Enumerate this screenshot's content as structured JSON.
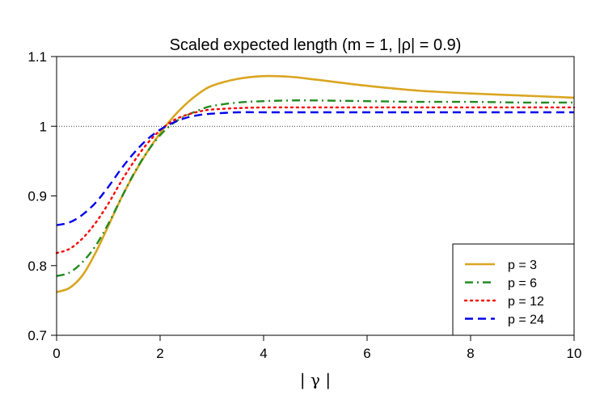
{
  "chart_data": {
    "type": "line",
    "title": "Scaled expected length (m = 1, |ρ| = 0.9)",
    "xlabel": "| γ |",
    "ylabel": "",
    "xlim": [
      0,
      10
    ],
    "ylim": [
      0.7,
      1.1
    ],
    "xticks": [
      0,
      2,
      4,
      6,
      8,
      10
    ],
    "xtick_labels": [
      "0",
      "2",
      "4",
      "6",
      "8",
      "10"
    ],
    "yticks": [
      0.7,
      0.8,
      0.9,
      1.0,
      1.1
    ],
    "ytick_labels": [
      "0.7",
      "0.8",
      "0.9",
      "1",
      "1.1"
    ],
    "reference_line": {
      "y": 1.0,
      "style": "dotted"
    },
    "legend_position": "bottom-right",
    "x": [
      0,
      0.25,
      0.5,
      0.75,
      1,
      1.25,
      1.5,
      1.75,
      2,
      2.25,
      2.5,
      2.75,
      3,
      3.5,
      4,
      4.5,
      5,
      6,
      7,
      8,
      9,
      10
    ],
    "series": [
      {
        "name": "p = 3",
        "color": "#DAA520",
        "dash": "solid",
        "values": [
          0.762,
          0.768,
          0.786,
          0.818,
          0.857,
          0.897,
          0.932,
          0.963,
          0.99,
          1.013,
          1.032,
          1.047,
          1.058,
          1.068,
          1.072,
          1.071,
          1.067,
          1.058,
          1.051,
          1.047,
          1.044,
          1.041
        ]
      },
      {
        "name": "p = 6",
        "color": "#228B22",
        "dash": "dashdot",
        "values": [
          0.785,
          0.79,
          0.805,
          0.828,
          0.86,
          0.897,
          0.933,
          0.963,
          0.987,
          1.004,
          1.015,
          1.023,
          1.029,
          1.034,
          1.036,
          1.037,
          1.037,
          1.036,
          1.035,
          1.035,
          1.034,
          1.034
        ]
      },
      {
        "name": "p = 12",
        "color": "#FF0000",
        "dash": "dotted",
        "values": [
          0.818,
          0.824,
          0.839,
          0.861,
          0.889,
          0.921,
          0.95,
          0.975,
          0.994,
          1.008,
          1.016,
          1.021,
          1.024,
          1.026,
          1.027,
          1.027,
          1.027,
          1.027,
          1.027,
          1.027,
          1.027,
          1.027
        ]
      },
      {
        "name": "p = 24",
        "color": "#0000EE",
        "dash": "dashed",
        "values": [
          0.858,
          0.862,
          0.873,
          0.89,
          0.913,
          0.939,
          0.962,
          0.981,
          0.995,
          1.005,
          1.012,
          1.016,
          1.018,
          1.02,
          1.02,
          1.02,
          1.02,
          1.02,
          1.02,
          1.02,
          1.02,
          1.02
        ]
      }
    ]
  }
}
